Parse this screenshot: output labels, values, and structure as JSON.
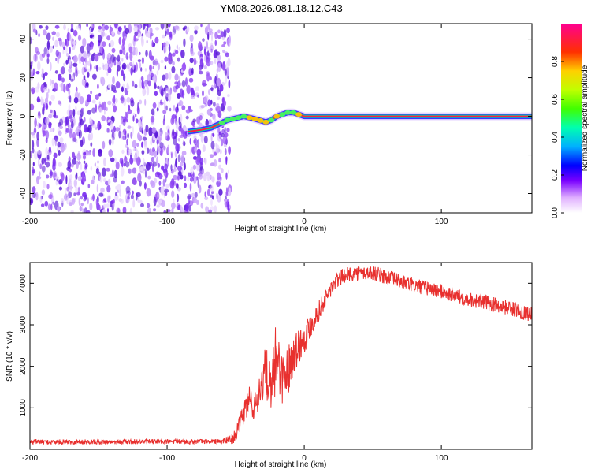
{
  "title": "YM08.2026.081.18.12.C43",
  "chart_data": [
    {
      "type": "heatmap",
      "title": "YM08.2026.081.18.12.C43",
      "xlabel": "Height of straight line (km)",
      "ylabel": "Frequency (Hz)",
      "xlim": [
        -200,
        166
      ],
      "ylim": [
        -50,
        48
      ],
      "xticks": [
        -200,
        -100,
        0,
        100
      ],
      "yticks": [
        -40,
        -20,
        0,
        20,
        40
      ],
      "noise_region_x": [
        -200,
        -54
      ],
      "signal_trace": {
        "x": [
          -85,
          -75,
          -68,
          -62,
          -56,
          -50,
          -44,
          -38,
          -33,
          -28,
          -24,
          -20,
          -16,
          -12,
          -8,
          -4,
          0,
          20,
          60,
          100,
          140,
          166
        ],
        "freq": [
          -8,
          -7,
          -6,
          -4,
          -2,
          -1,
          0,
          -1,
          -2,
          -3,
          -2,
          0,
          1,
          2,
          2,
          1,
          0,
          0,
          0,
          0,
          0,
          0
        ]
      },
      "colorbar": {
        "label": "Normalized spectral amplitude",
        "range": [
          0,
          1
        ],
        "ticks": [
          "0.0",
          "0.2",
          "0.4",
          "0.6",
          "0.8"
        ]
      }
    },
    {
      "type": "line",
      "xlabel": "Height of straight line (km)",
      "ylabel": "SNR (10 * v/v)",
      "xlim": [
        -200,
        166
      ],
      "ylim": [
        0,
        4500
      ],
      "xticks": [
        -200,
        -100,
        0,
        100
      ],
      "yticks": [
        1000,
        2000,
        3000,
        4000
      ],
      "series": [
        {
          "name": "SNR",
          "color": "#e8302e",
          "x": [
            -200,
            -150,
            -100,
            -60,
            -52,
            -48,
            -44,
            -40,
            -36,
            -32,
            -28,
            -24,
            -20,
            -16,
            -12,
            -8,
            -4,
            0,
            5,
            10,
            15,
            20,
            25,
            30,
            40,
            50,
            60,
            70,
            80,
            90,
            100,
            110,
            120,
            130,
            140,
            150,
            160,
            166
          ],
          "y": [
            180,
            180,
            185,
            190,
            250,
            500,
            900,
            1200,
            1000,
            1500,
            1900,
            1300,
            2400,
            1700,
            1900,
            2300,
            2500,
            2700,
            3000,
            3300,
            3600,
            3900,
            4100,
            4200,
            4250,
            4250,
            4150,
            4050,
            3950,
            3880,
            3800,
            3700,
            3620,
            3550,
            3480,
            3400,
            3300,
            3250
          ],
          "noise_amplitude": [
            60,
            60,
            60,
            60,
            120,
            200,
            300,
            400,
            350,
            500,
            600,
            700,
            900,
            600,
            600,
            500,
            450,
            400,
            300,
            250,
            230,
            200,
            200,
            180,
            180,
            180,
            180,
            180,
            180,
            180,
            180,
            180,
            180,
            180,
            180,
            180,
            180,
            180
          ]
        }
      ]
    }
  ]
}
